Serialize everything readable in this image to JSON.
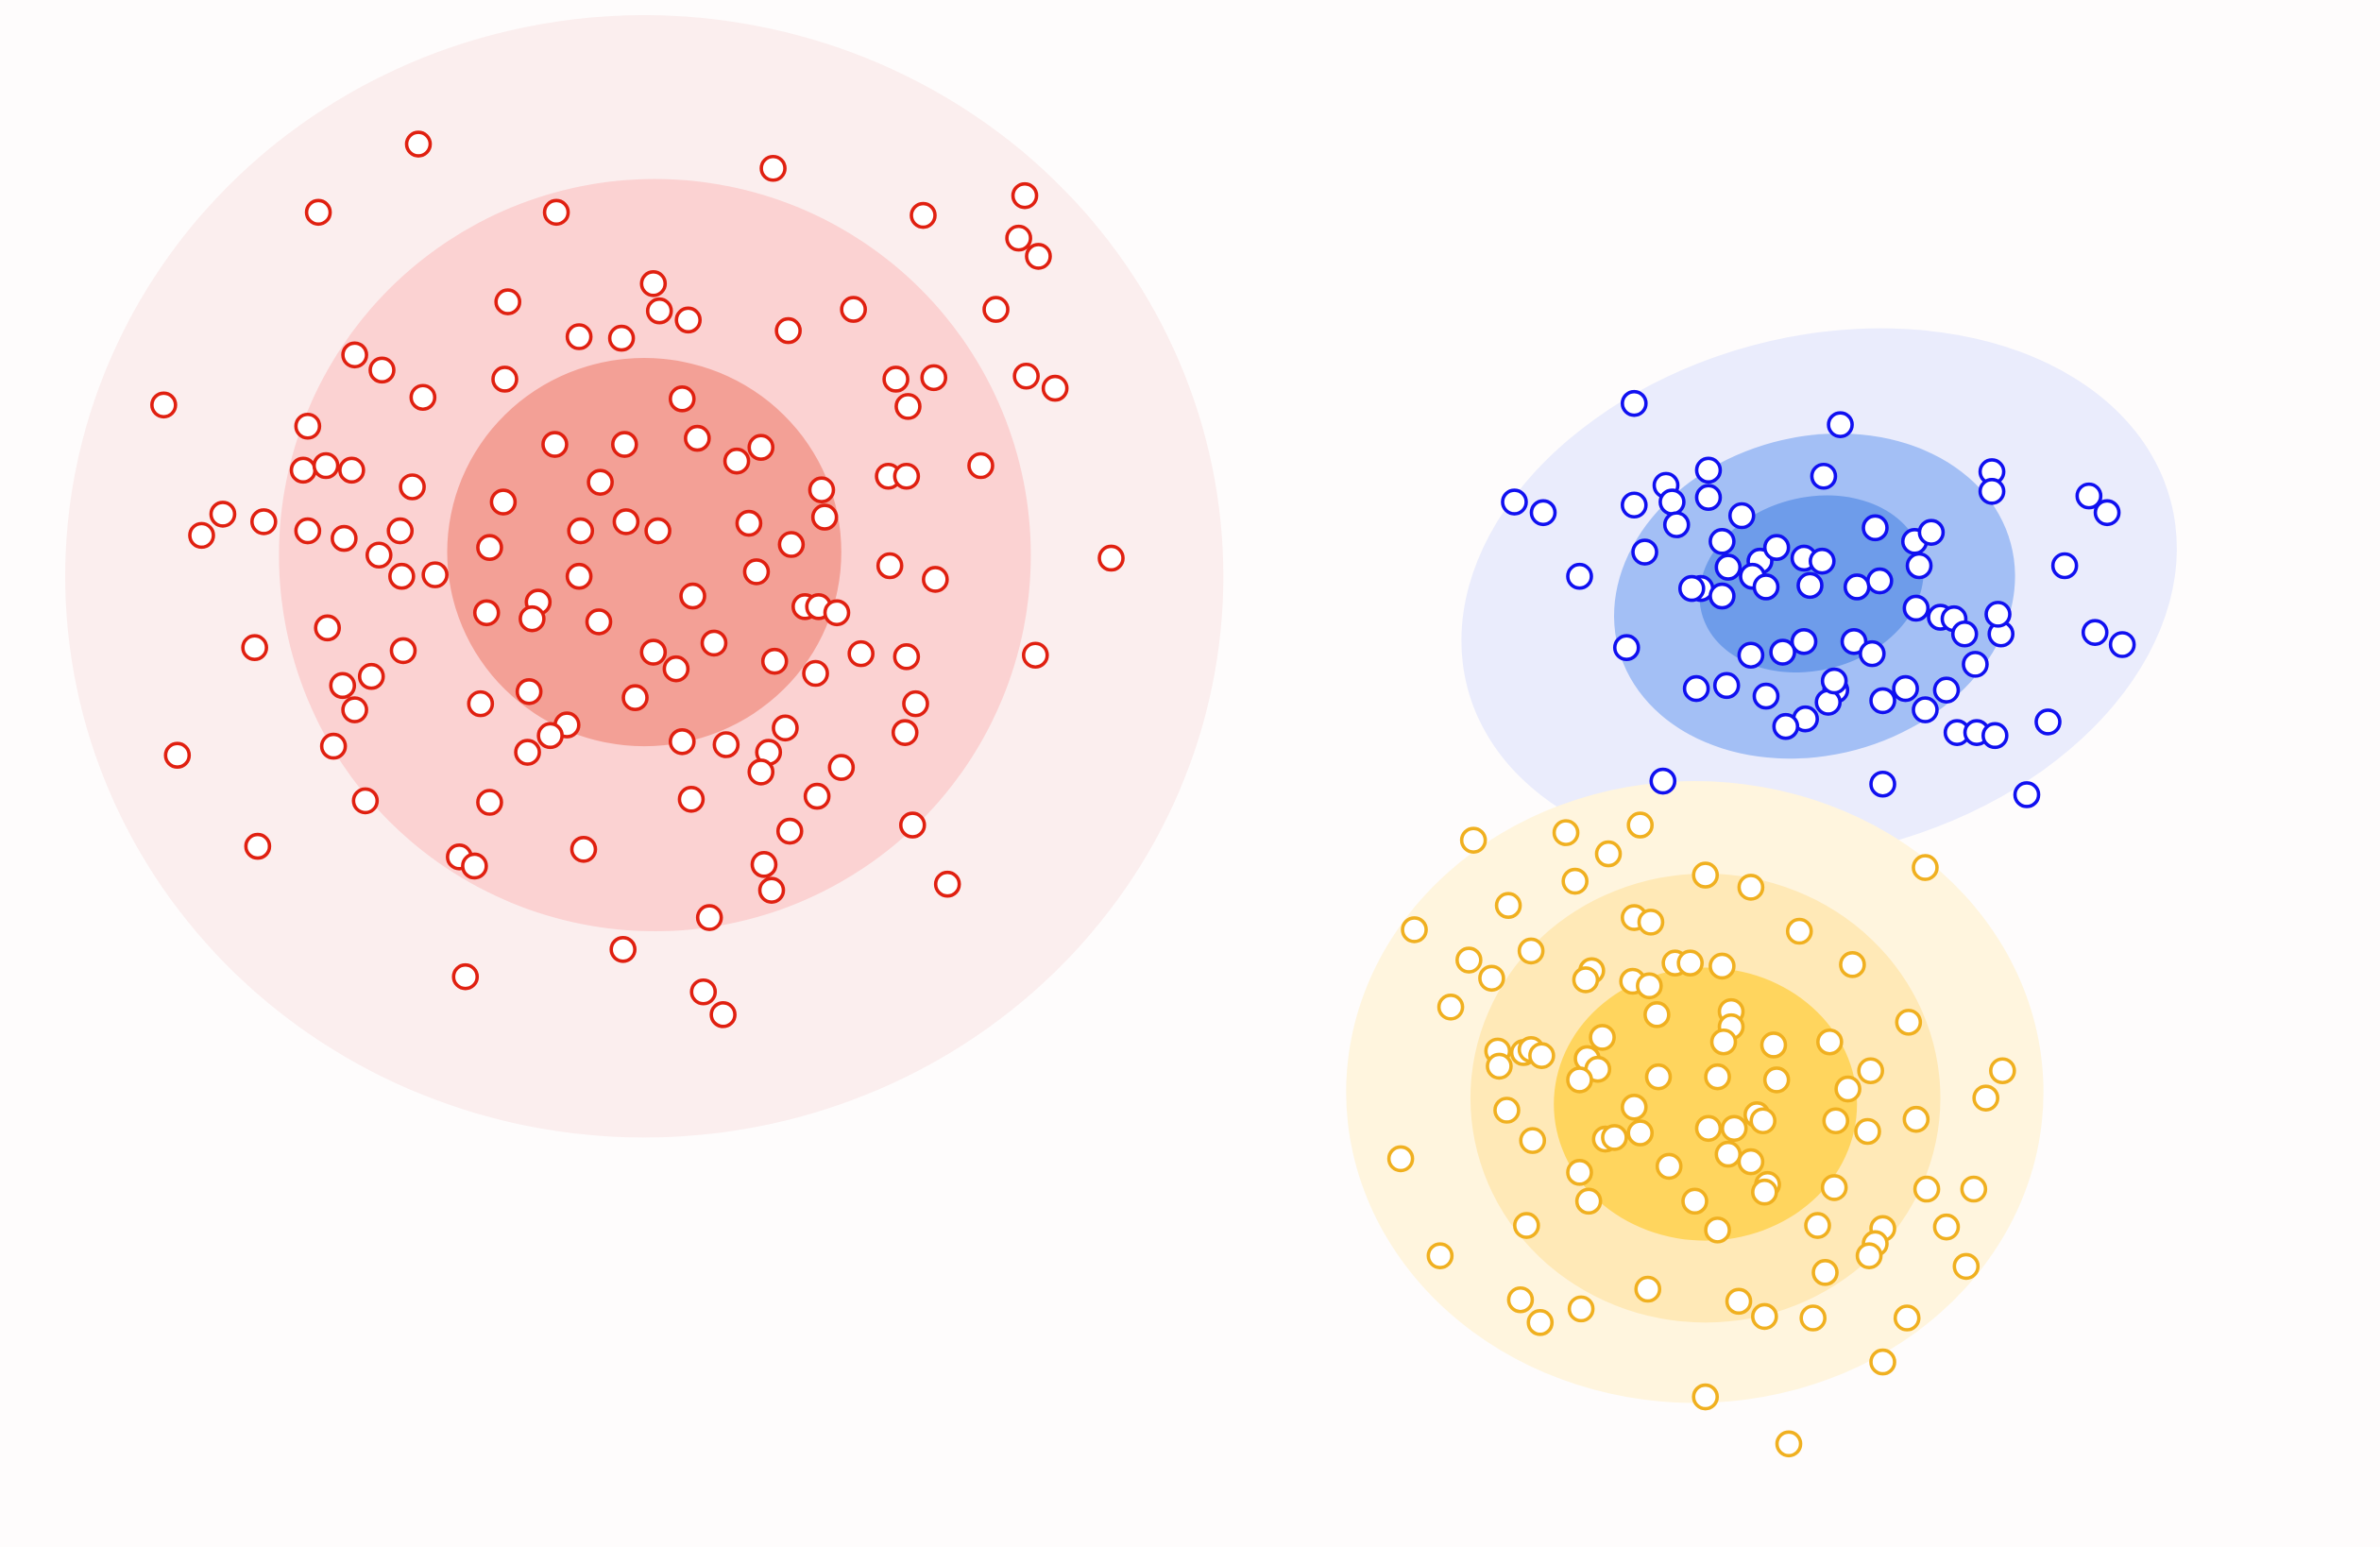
{
  "chart_data": {
    "type": "scatter",
    "title": "",
    "xlabel": "",
    "ylabel": "",
    "xlim": [
      0,
      1570
    ],
    "ylim": [
      0,
      1020
    ],
    "grid": false,
    "legend": "none",
    "axes_visible": false,
    "background": "#fefcfc",
    "marker": "open-circle",
    "series": [
      {
        "color": "#e02010",
        "ellipses": [
          {
            "cx": 425,
            "cy": 640,
            "rx": 382,
            "ry": 370,
            "angle": 0,
            "fill": "#fbeeee"
          },
          {
            "cx": 432,
            "cy": 654,
            "rx": 248,
            "ry": 248,
            "angle": 0,
            "fill": "#fbd2d2"
          },
          {
            "cx": 425,
            "cy": 656,
            "rx": 130,
            "ry": 128,
            "angle": 0,
            "fill": "#f3a096"
          }
        ],
        "points": [
          [
            276,
            925
          ],
          [
            210,
            880
          ],
          [
            367,
            880
          ],
          [
            510,
            909
          ],
          [
            609,
            878
          ],
          [
            676,
            891
          ],
          [
            672,
            863
          ],
          [
            685,
            851
          ],
          [
            108,
            753
          ],
          [
            234,
            786
          ],
          [
            252,
            776
          ],
          [
            279,
            758
          ],
          [
            333,
            770
          ],
          [
            335,
            821
          ],
          [
            382,
            798
          ],
          [
            410,
            797
          ],
          [
            431,
            833
          ],
          [
            435,
            815
          ],
          [
            454,
            809
          ],
          [
            520,
            802
          ],
          [
            563,
            816
          ],
          [
            657,
            816
          ],
          [
            677,
            772
          ],
          [
            696,
            764
          ],
          [
            591,
            770
          ],
          [
            616,
            771
          ],
          [
            599,
            752
          ],
          [
            203,
            739
          ],
          [
            200,
            710
          ],
          [
            215,
            713
          ],
          [
            232,
            710
          ],
          [
            272,
            699
          ],
          [
            147,
            681
          ],
          [
            133,
            667
          ],
          [
            174,
            676
          ],
          [
            203,
            670
          ],
          [
            227,
            665
          ],
          [
            264,
            670
          ],
          [
            250,
            654
          ],
          [
            265,
            640
          ],
          [
            287,
            641
          ],
          [
            323,
            659
          ],
          [
            332,
            689
          ],
          [
            366,
            727
          ],
          [
            412,
            727
          ],
          [
            396,
            702
          ],
          [
            413,
            676
          ],
          [
            383,
            670
          ],
          [
            382,
            640
          ],
          [
            434,
            670
          ],
          [
            450,
            757
          ],
          [
            460,
            731
          ],
          [
            486,
            716
          ],
          [
            502,
            725
          ],
          [
            542,
            697
          ],
          [
            544,
            679
          ],
          [
            494,
            675
          ],
          [
            522,
            661
          ],
          [
            499,
            643
          ],
          [
            457,
            627
          ],
          [
            355,
            623
          ],
          [
            351,
            612
          ],
          [
            395,
            610
          ],
          [
            321,
            616
          ],
          [
            586,
            706
          ],
          [
            598,
            706
          ],
          [
            647,
            713
          ],
          [
            733,
            652
          ],
          [
            587,
            647
          ],
          [
            617,
            638
          ],
          [
            531,
            620
          ],
          [
            540,
            620
          ],
          [
            552,
            616
          ],
          [
            471,
            596
          ],
          [
            431,
            590
          ],
          [
            446,
            579
          ],
          [
            511,
            584
          ],
          [
            538,
            576
          ],
          [
            568,
            589
          ],
          [
            598,
            587
          ],
          [
            683,
            588
          ],
          [
            168,
            593
          ],
          [
            216,
            606
          ],
          [
            266,
            591
          ],
          [
            245,
            574
          ],
          [
            226,
            568
          ],
          [
            234,
            552
          ],
          [
            220,
            528
          ],
          [
            117,
            522
          ],
          [
            349,
            564
          ],
          [
            317,
            556
          ],
          [
            419,
            560
          ],
          [
            374,
            542
          ],
          [
            363,
            535
          ],
          [
            348,
            524
          ],
          [
            450,
            531
          ],
          [
            479,
            529
          ],
          [
            507,
            524
          ],
          [
            518,
            540
          ],
          [
            502,
            511
          ],
          [
            456,
            493
          ],
          [
            555,
            514
          ],
          [
            539,
            495
          ],
          [
            604,
            556
          ],
          [
            597,
            537
          ],
          [
            323,
            491
          ],
          [
            241,
            492
          ],
          [
            521,
            472
          ],
          [
            170,
            462
          ],
          [
            303,
            455
          ],
          [
            313,
            449
          ],
          [
            385,
            460
          ],
          [
            504,
            450
          ],
          [
            509,
            433
          ],
          [
            602,
            476
          ],
          [
            625,
            437
          ],
          [
            468,
            415
          ],
          [
            411,
            394
          ],
          [
            307,
            376
          ],
          [
            464,
            366
          ],
          [
            477,
            351
          ]
        ]
      },
      {
        "color": "#1010f0",
        "ellipses": [
          {
            "cx": 1200,
            "cy": 628,
            "rx": 240,
            "ry": 170,
            "angle": -15,
            "fill": "#eaecfc"
          },
          {
            "cx": 1197,
            "cy": 627,
            "rx": 134,
            "ry": 105,
            "angle": -15,
            "fill": "#a3bff5"
          },
          {
            "cx": 1195,
            "cy": 635,
            "rx": 75,
            "ry": 57,
            "angle": -15,
            "fill": "#6e9cea"
          }
        ],
        "points": [
          [
            1078,
            754
          ],
          [
            1214,
            740
          ],
          [
            999,
            689
          ],
          [
            1018,
            682
          ],
          [
            1078,
            687
          ],
          [
            1099,
            700
          ],
          [
            1103,
            689
          ],
          [
            1127,
            710
          ],
          [
            1127,
            692
          ],
          [
            1106,
            674
          ],
          [
            1149,
            680
          ],
          [
            1085,
            656
          ],
          [
            1136,
            663
          ],
          [
            1161,
            650
          ],
          [
            1140,
            646
          ],
          [
            1172,
            659
          ],
          [
            1190,
            652
          ],
          [
            1202,
            650
          ],
          [
            1156,
            640
          ],
          [
            1165,
            633
          ],
          [
            1194,
            634
          ],
          [
            1225,
            633
          ],
          [
            1240,
            637
          ],
          [
            1122,
            632
          ],
          [
            1116,
            632
          ],
          [
            1136,
            627
          ],
          [
            1203,
            706
          ],
          [
            1314,
            709
          ],
          [
            1314,
            696
          ],
          [
            1237,
            672
          ],
          [
            1263,
            663
          ],
          [
            1274,
            669
          ],
          [
            1266,
            647
          ],
          [
            1042,
            640
          ],
          [
            1073,
            593
          ],
          [
            1155,
            588
          ],
          [
            1176,
            590
          ],
          [
            1190,
            597
          ],
          [
            1223,
            597
          ],
          [
            1235,
            589
          ],
          [
            1264,
            619
          ],
          [
            1280,
            613
          ],
          [
            1289,
            612
          ],
          [
            1296,
            602
          ],
          [
            1320,
            602
          ],
          [
            1318,
            615
          ],
          [
            1303,
            582
          ],
          [
            1378,
            693
          ],
          [
            1390,
            682
          ],
          [
            1362,
            647
          ],
          [
            1382,
            603
          ],
          [
            1400,
            595
          ],
          [
            1119,
            566
          ],
          [
            1139,
            568
          ],
          [
            1165,
            561
          ],
          [
            1211,
            565
          ],
          [
            1206,
            557
          ],
          [
            1210,
            571
          ],
          [
            1242,
            558
          ],
          [
            1257,
            566
          ],
          [
            1284,
            565
          ],
          [
            1270,
            552
          ],
          [
            1191,
            546
          ],
          [
            1178,
            541
          ],
          [
            1291,
            537
          ],
          [
            1304,
            537
          ],
          [
            1316,
            535
          ],
          [
            1351,
            544
          ],
          [
            1097,
            505
          ],
          [
            1242,
            503
          ],
          [
            1337,
            496
          ]
        ]
      },
      {
        "color": "#f0b020",
        "ellipses": [
          {
            "cx": 1118,
            "cy": 300,
            "rx": 230,
            "ry": 205,
            "angle": 0,
            "fill": "#fff5de"
          },
          {
            "cx": 1125,
            "cy": 296,
            "rx": 155,
            "ry": 148,
            "angle": 0,
            "fill": "#ffe9b7"
          },
          {
            "cx": 1125,
            "cy": 292,
            "rx": 100,
            "ry": 90,
            "angle": 0,
            "fill": "#ffd55e"
          }
        ],
        "points": [
          [
            972,
            466
          ],
          [
            1033,
            471
          ],
          [
            1061,
            457
          ],
          [
            1082,
            476
          ],
          [
            1039,
            439
          ],
          [
            1125,
            443
          ],
          [
            1155,
            435
          ],
          [
            1270,
            448
          ],
          [
            995,
            423
          ],
          [
            1078,
            415
          ],
          [
            1089,
            412
          ],
          [
            1187,
            406
          ],
          [
            933,
            407
          ],
          [
            969,
            387
          ],
          [
            984,
            375
          ],
          [
            1010,
            393
          ],
          [
            1050,
            380
          ],
          [
            1046,
            374
          ],
          [
            1077,
            373
          ],
          [
            1088,
            370
          ],
          [
            1105,
            385
          ],
          [
            1115,
            385
          ],
          [
            1136,
            383
          ],
          [
            1222,
            384
          ],
          [
            957,
            356
          ],
          [
            1093,
            351
          ],
          [
            1142,
            353
          ],
          [
            1259,
            346
          ],
          [
            1057,
            336
          ],
          [
            1142,
            343
          ],
          [
            1137,
            333
          ],
          [
            1170,
            331
          ],
          [
            1207,
            333
          ],
          [
            988,
            327
          ],
          [
            1005,
            326
          ],
          [
            1010,
            328
          ],
          [
            1017,
            324
          ],
          [
            1047,
            322
          ],
          [
            989,
            317
          ],
          [
            1054,
            315
          ],
          [
            1042,
            308
          ],
          [
            1094,
            310
          ],
          [
            1133,
            310
          ],
          [
            1172,
            308
          ],
          [
            1234,
            314
          ],
          [
            1321,
            314
          ],
          [
            1219,
            302
          ],
          [
            1310,
            296
          ],
          [
            1078,
            290
          ],
          [
            994,
            288
          ],
          [
            1082,
            273
          ],
          [
            1059,
            269
          ],
          [
            1065,
            270
          ],
          [
            1011,
            268
          ],
          [
            1127,
            276
          ],
          [
            1144,
            276
          ],
          [
            1159,
            285
          ],
          [
            1163,
            281
          ],
          [
            1211,
            281
          ],
          [
            1232,
            274
          ],
          [
            1264,
            282
          ],
          [
            1140,
            259
          ],
          [
            1155,
            254
          ],
          [
            924,
            256
          ],
          [
            1101,
            251
          ],
          [
            1042,
            247
          ],
          [
            1166,
            239
          ],
          [
            1164,
            234
          ],
          [
            1210,
            237
          ],
          [
            1271,
            236
          ],
          [
            1302,
            236
          ],
          [
            1048,
            228
          ],
          [
            1118,
            228
          ],
          [
            1007,
            212
          ],
          [
            1199,
            212
          ],
          [
            1242,
            210
          ],
          [
            1284,
            211
          ],
          [
            1133,
            209
          ],
          [
            1237,
            200
          ],
          [
            1233,
            192
          ],
          [
            950,
            192
          ],
          [
            1204,
            181
          ],
          [
            1297,
            185
          ],
          [
            1087,
            170
          ],
          [
            1003,
            163
          ],
          [
            1147,
            162
          ],
          [
            1043,
            157
          ],
          [
            1164,
            152
          ],
          [
            1196,
            151
          ],
          [
            1258,
            151
          ],
          [
            1016,
            148
          ],
          [
            1242,
            122
          ],
          [
            1125,
            99
          ],
          [
            1180,
            68
          ]
        ]
      }
    ]
  }
}
